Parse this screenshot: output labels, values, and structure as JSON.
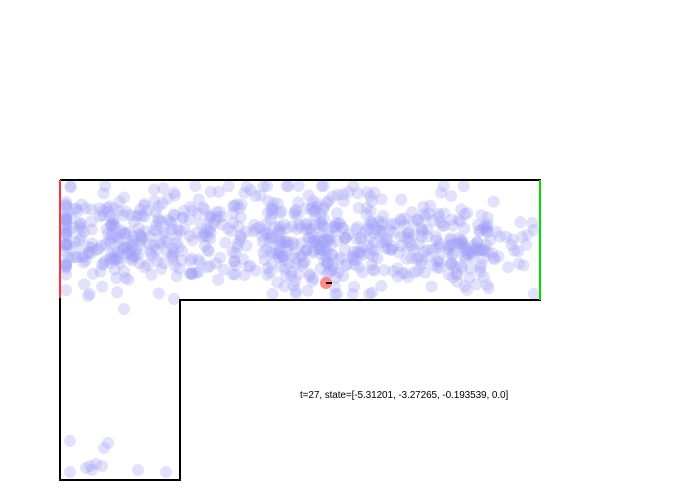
{
  "status_text": "t=27, state=[-5.31201, -3.27265, -0.193539, 0.0]",
  "colors": {
    "background": "#ffffff",
    "wall": "#000000",
    "left_boundary": "#ff3333",
    "right_boundary": "#00dd00",
    "particle": "#9f9ff8",
    "agent": "#ff7777",
    "agent_heading": "#000000"
  },
  "agent_state": {
    "t": 27,
    "values": [
      -5.31201,
      -3.27265,
      -0.193539,
      0.0
    ]
  }
}
